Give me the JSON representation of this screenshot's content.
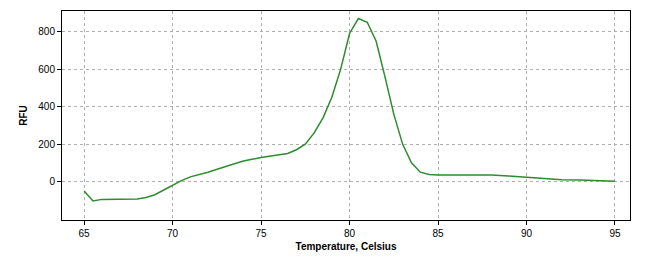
{
  "chart_data": {
    "type": "line",
    "x_label": "Temperature, Celsius",
    "y_label": "RFU",
    "x": [
      65,
      65.5,
      66,
      67,
      68,
      68.5,
      69,
      69.5,
      70,
      70.5,
      71,
      72,
      73,
      74,
      75,
      76,
      76.5,
      77,
      77.5,
      78,
      78.5,
      79,
      79.5,
      80,
      80.5,
      81,
      81.5,
      82,
      82.5,
      83,
      83.5,
      84,
      84.5,
      85,
      86,
      87,
      88,
      89,
      90,
      91,
      92,
      93,
      94,
      95
    ],
    "values": [
      -50,
      -103,
      -95,
      -95,
      -93,
      -85,
      -70,
      -45,
      -20,
      5,
      25,
      50,
      80,
      110,
      128,
      140,
      150,
      170,
      200,
      260,
      340,
      450,
      600,
      790,
      870,
      850,
      750,
      560,
      360,
      200,
      100,
      50,
      38,
      35,
      35,
      35,
      35,
      30,
      22,
      15,
      10,
      8,
      6,
      2
    ],
    "color": "#2e8b2e",
    "xlim": [
      63.75,
      95.85
    ],
    "ylim": [
      -205,
      910
    ],
    "xticks": [
      65,
      70,
      75,
      80,
      85,
      90,
      95
    ],
    "yticks": [
      0,
      200,
      400,
      600,
      800
    ],
    "grid": true
  }
}
